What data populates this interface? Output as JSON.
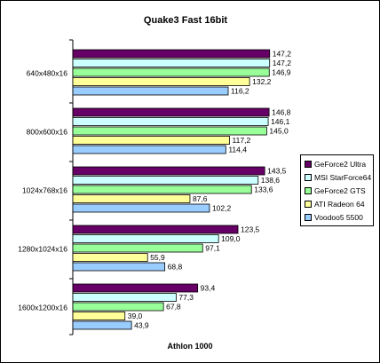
{
  "chart_data": {
    "type": "bar",
    "orientation": "horizontal",
    "title": "Quake3 Fast 16bit",
    "xlabel": "Athlon 1000",
    "ylabel": "",
    "categories": [
      "640x480x16",
      "800x600x16",
      "1024x768x16",
      "1280x1024x16",
      "1600x1200x16"
    ],
    "value_labels": true,
    "number_format": "comma-decimal",
    "xlim": [
      0,
      160
    ],
    "grid": false,
    "legend_position": "right",
    "series": [
      {
        "name": "GeForce2 Ultra",
        "color": "#660066",
        "values": [
          147.2,
          146.8,
          143.5,
          123.5,
          93.4
        ]
      },
      {
        "name": "MSI StarForce64",
        "color": "#ccffff",
        "values": [
          147.2,
          146.1,
          138.6,
          109.0,
          77.3
        ]
      },
      {
        "name": "GeForce2 GTS",
        "color": "#99ff99",
        "values": [
          146.9,
          145.0,
          133.6,
          97.1,
          67.8
        ]
      },
      {
        "name": "ATI Radeon 64",
        "color": "#ffff99",
        "values": [
          132.2,
          117.2,
          87.6,
          55.9,
          39.0
        ]
      },
      {
        "name": "Voodoo5 5500",
        "color": "#99ccff",
        "values": [
          116.2,
          114.4,
          102.2,
          68.8,
          43.9
        ]
      }
    ]
  }
}
